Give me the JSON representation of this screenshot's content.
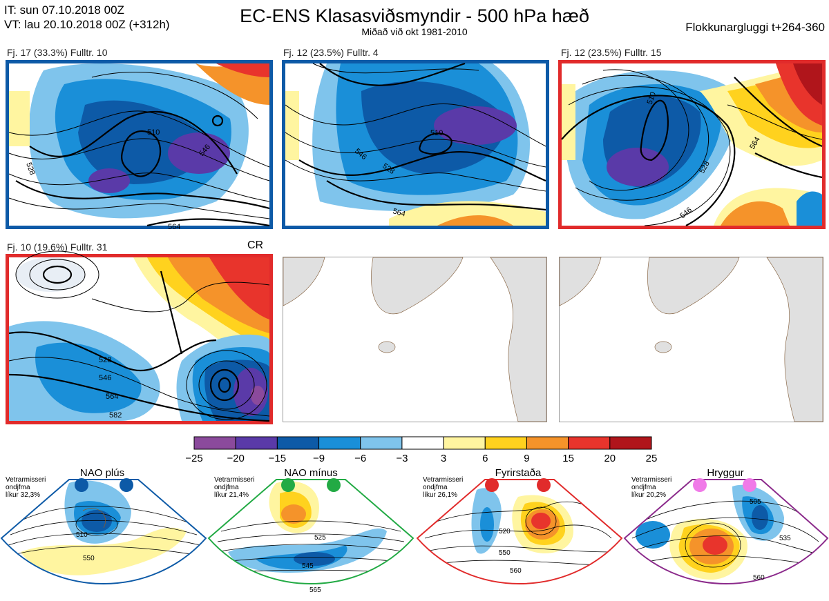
{
  "header": {
    "it_line": "IT: sun 07.10.2018 00Z",
    "vt_line": "VT: lau 20.10.2018 00Z  (+312h)",
    "title": "EC-ENS Klasasviðsmyndir - 500 hPa hæð",
    "subtitle": "Miðað við okt 1981-2010",
    "window": "Flokkunargluggi t+264-360"
  },
  "panels": [
    {
      "label": "Fj. 17 (33.3%)   Fulltr. 10",
      "frame_color": "#0d5aa7",
      "contours": [
        "510",
        "528",
        "546",
        "564"
      ]
    },
    {
      "label": "Fj. 12 (23.5%)   Fulltr. 4",
      "frame_color": "#0d5aa7",
      "contours": [
        "510",
        "528",
        "546",
        "564"
      ]
    },
    {
      "label": "Fj. 12 (23.5%)   Fulltr. 15",
      "frame_color": "#e12b2b",
      "contours": [
        "510",
        "528",
        "546",
        "564"
      ]
    },
    {
      "label": "Fj. 10 (19.6%)   Fulltr. 31",
      "frame_color": "#e12b2b",
      "tag": "CR",
      "contours": [
        "528",
        "546",
        "564",
        "582"
      ]
    }
  ],
  "colorbar": {
    "ticks": [
      "−25",
      "−20",
      "−15",
      "−9",
      "−6",
      "−3",
      "3",
      "6",
      "9",
      "15",
      "20",
      "25"
    ],
    "colors": [
      "#8b4a9c",
      "#5a3aa8",
      "#0d5aa7",
      "#1a8fd8",
      "#7fc4ec",
      "#ffffff",
      "#fff5a0",
      "#ffd21e",
      "#f5932a",
      "#e8342c",
      "#b0151b"
    ]
  },
  "regimes": [
    {
      "name": "NAO plús",
      "note": [
        "Vetrarmisseri",
        "ondjfma",
        "líkur 32,3%"
      ],
      "color": "#0d5aa7",
      "contours": [
        "510",
        "550"
      ]
    },
    {
      "name": "NAO mínus",
      "note": [
        "Vetrarmisseri",
        "ondjfma",
        "líkur 21,4%"
      ],
      "color": "#22aa44",
      "contours": [
        "525",
        "545",
        "565"
      ]
    },
    {
      "name": "Fyrirstaða",
      "note": [
        "Vetrarmisseri",
        "ondjfma",
        "líkur 26,1%"
      ],
      "color": "#e12b2b",
      "contours": [
        "520",
        "550",
        "560"
      ]
    },
    {
      "name": "Hryggur",
      "note": [
        "Vetrarmisseri",
        "ondjfma",
        "líkur 20,2%"
      ],
      "color": "#8b2a8b",
      "contours": [
        "505",
        "535",
        "560"
      ]
    }
  ]
}
